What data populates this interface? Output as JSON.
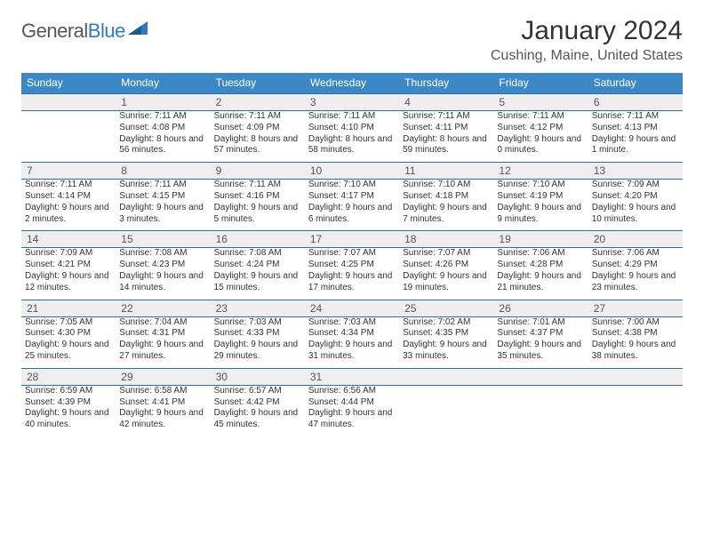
{
  "brand": {
    "name_part1": "General",
    "name_part2": "Blue"
  },
  "title": "January 2024",
  "location": "Cushing, Maine, United States",
  "colors": {
    "header_bg": "#3b88c4",
    "header_text": "#ffffff",
    "strip_bg": "#eeeeee",
    "strip_border": "#2a6fa8",
    "body_text": "#333333",
    "muted_text": "#555555",
    "logo_gray": "#555858",
    "logo_blue": "#2f7bbf",
    "page_bg": "#ffffff"
  },
  "typography": {
    "title_fontsize": 30,
    "location_fontsize": 16,
    "dayhead_fontsize": 12,
    "daynum_fontsize": 12,
    "cell_fontsize": 10,
    "logo_fontsize": 22
  },
  "day_headers": [
    "Sunday",
    "Monday",
    "Tuesday",
    "Wednesday",
    "Thursday",
    "Friday",
    "Saturday"
  ],
  "weeks": [
    {
      "nums": [
        "",
        "1",
        "2",
        "3",
        "4",
        "5",
        "6"
      ],
      "cells": [
        [],
        [
          "Sunrise: 7:11 AM",
          "Sunset: 4:08 PM",
          "Daylight: 8 hours and 56 minutes."
        ],
        [
          "Sunrise: 7:11 AM",
          "Sunset: 4:09 PM",
          "Daylight: 8 hours and 57 minutes."
        ],
        [
          "Sunrise: 7:11 AM",
          "Sunset: 4:10 PM",
          "Daylight: 8 hours and 58 minutes."
        ],
        [
          "Sunrise: 7:11 AM",
          "Sunset: 4:11 PM",
          "Daylight: 8 hours and 59 minutes."
        ],
        [
          "Sunrise: 7:11 AM",
          "Sunset: 4:12 PM",
          "Daylight: 9 hours and 0 minutes."
        ],
        [
          "Sunrise: 7:11 AM",
          "Sunset: 4:13 PM",
          "Daylight: 9 hours and 1 minute."
        ]
      ]
    },
    {
      "nums": [
        "7",
        "8",
        "9",
        "10",
        "11",
        "12",
        "13"
      ],
      "cells": [
        [
          "Sunrise: 7:11 AM",
          "Sunset: 4:14 PM",
          "Daylight: 9 hours and 2 minutes."
        ],
        [
          "Sunrise: 7:11 AM",
          "Sunset: 4:15 PM",
          "Daylight: 9 hours and 3 minutes."
        ],
        [
          "Sunrise: 7:11 AM",
          "Sunset: 4:16 PM",
          "Daylight: 9 hours and 5 minutes."
        ],
        [
          "Sunrise: 7:10 AM",
          "Sunset: 4:17 PM",
          "Daylight: 9 hours and 6 minutes."
        ],
        [
          "Sunrise: 7:10 AM",
          "Sunset: 4:18 PM",
          "Daylight: 9 hours and 7 minutes."
        ],
        [
          "Sunrise: 7:10 AM",
          "Sunset: 4:19 PM",
          "Daylight: 9 hours and 9 minutes."
        ],
        [
          "Sunrise: 7:09 AM",
          "Sunset: 4:20 PM",
          "Daylight: 9 hours and 10 minutes."
        ]
      ]
    },
    {
      "nums": [
        "14",
        "15",
        "16",
        "17",
        "18",
        "19",
        "20"
      ],
      "cells": [
        [
          "Sunrise: 7:09 AM",
          "Sunset: 4:21 PM",
          "Daylight: 9 hours and 12 minutes."
        ],
        [
          "Sunrise: 7:08 AM",
          "Sunset: 4:23 PM",
          "Daylight: 9 hours and 14 minutes."
        ],
        [
          "Sunrise: 7:08 AM",
          "Sunset: 4:24 PM",
          "Daylight: 9 hours and 15 minutes."
        ],
        [
          "Sunrise: 7:07 AM",
          "Sunset: 4:25 PM",
          "Daylight: 9 hours and 17 minutes."
        ],
        [
          "Sunrise: 7:07 AM",
          "Sunset: 4:26 PM",
          "Daylight: 9 hours and 19 minutes."
        ],
        [
          "Sunrise: 7:06 AM",
          "Sunset: 4:28 PM",
          "Daylight: 9 hours and 21 minutes."
        ],
        [
          "Sunrise: 7:06 AM",
          "Sunset: 4:29 PM",
          "Daylight: 9 hours and 23 minutes."
        ]
      ]
    },
    {
      "nums": [
        "21",
        "22",
        "23",
        "24",
        "25",
        "26",
        "27"
      ],
      "cells": [
        [
          "Sunrise: 7:05 AM",
          "Sunset: 4:30 PM",
          "Daylight: 9 hours and 25 minutes."
        ],
        [
          "Sunrise: 7:04 AM",
          "Sunset: 4:31 PM",
          "Daylight: 9 hours and 27 minutes."
        ],
        [
          "Sunrise: 7:03 AM",
          "Sunset: 4:33 PM",
          "Daylight: 9 hours and 29 minutes."
        ],
        [
          "Sunrise: 7:03 AM",
          "Sunset: 4:34 PM",
          "Daylight: 9 hours and 31 minutes."
        ],
        [
          "Sunrise: 7:02 AM",
          "Sunset: 4:35 PM",
          "Daylight: 9 hours and 33 minutes."
        ],
        [
          "Sunrise: 7:01 AM",
          "Sunset: 4:37 PM",
          "Daylight: 9 hours and 35 minutes."
        ],
        [
          "Sunrise: 7:00 AM",
          "Sunset: 4:38 PM",
          "Daylight: 9 hours and 38 minutes."
        ]
      ]
    },
    {
      "nums": [
        "28",
        "29",
        "30",
        "31",
        "",
        "",
        ""
      ],
      "cells": [
        [
          "Sunrise: 6:59 AM",
          "Sunset: 4:39 PM",
          "Daylight: 9 hours and 40 minutes."
        ],
        [
          "Sunrise: 6:58 AM",
          "Sunset: 4:41 PM",
          "Daylight: 9 hours and 42 minutes."
        ],
        [
          "Sunrise: 6:57 AM",
          "Sunset: 4:42 PM",
          "Daylight: 9 hours and 45 minutes."
        ],
        [
          "Sunrise: 6:56 AM",
          "Sunset: 4:44 PM",
          "Daylight: 9 hours and 47 minutes."
        ],
        [],
        [],
        []
      ]
    }
  ]
}
